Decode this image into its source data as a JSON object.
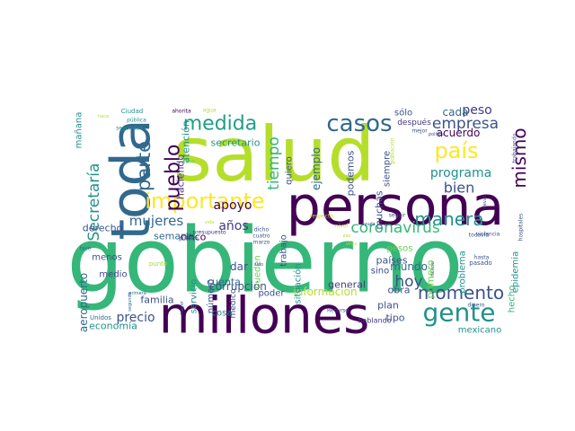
{
  "words": [
    {
      "text": "gobierno",
      "color": "#35b779"
    },
    {
      "text": "salud",
      "color": "#b5de2b"
    },
    {
      "text": "persona",
      "color": "#440154"
    },
    {
      "text": "millones",
      "color": "#440154"
    },
    {
      "text": "toda",
      "color": "#31688e"
    },
    {
      "text": "importante",
      "color": "#fde725"
    },
    {
      "text": "manera",
      "color": "#21918c"
    },
    {
      "text": "casos",
      "color": "#31688e"
    },
    {
      "text": "medida",
      "color": "#1f9e89"
    },
    {
      "text": "país",
      "color": "#fde725"
    },
    {
      "text": "gente",
      "color": "#21918c"
    },
    {
      "text": "coronavirus",
      "color": "#35b779"
    },
    {
      "text": "momento",
      "color": "#3b528b"
    },
    {
      "text": "pueblo",
      "color": "#440154"
    },
    {
      "text": "tiempo",
      "color": "#35b779"
    },
    {
      "text": "parte",
      "color": "#31688e"
    },
    {
      "text": "mismo",
      "color": "#440154"
    },
    {
      "text": "empresa",
      "color": "#3b528b"
    },
    {
      "text": "bien",
      "color": "#3b528b"
    },
    {
      "text": "mujeres",
      "color": "#31688e"
    },
    {
      "text": "Secretaría",
      "color": "#21918c"
    },
    {
      "text": "hoy",
      "color": "#3b528b"
    },
    {
      "text": "programa",
      "color": "#21918c"
    },
    {
      "text": "apoyo",
      "color": "#440154"
    },
    {
      "text": "años",
      "color": "#443983"
    },
    {
      "text": "precio",
      "color": "#3b528b"
    },
    {
      "text": "información",
      "color": "#b5de2b"
    },
    {
      "text": "corrupción",
      "color": "#3b528b"
    },
    {
      "text": "peso",
      "color": "#443983"
    },
    {
      "text": "cada",
      "color": "#31688e"
    },
    {
      "text": "ejemplo",
      "color": "#31688e"
    },
    {
      "text": "secretario",
      "color": "#21918c"
    },
    {
      "text": "acuerdo",
      "color": "#440154"
    },
    {
      "text": "podemos",
      "color": "#3b528b"
    },
    {
      "text": "muchas",
      "color": "#3b528b"
    },
    {
      "text": "mundo",
      "color": "#31688e"
    },
    {
      "text": "atención",
      "color": "#21918c"
    },
    {
      "text": "haciendo",
      "color": "#443983"
    },
    {
      "text": "semana",
      "color": "#31688e"
    },
    {
      "text": "derecho",
      "color": "#3b528b"
    },
    {
      "text": "menos",
      "color": "#3b528b"
    },
    {
      "text": "medio",
      "color": "#3e4a89"
    },
    {
      "text": "cinco",
      "color": "#440154"
    },
    {
      "text": "cuenta",
      "color": "#31688e"
    },
    {
      "text": "general",
      "color": "#443983"
    },
    {
      "text": "países",
      "color": "#3b528b"
    },
    {
      "text": "sino",
      "color": "#3e4a89"
    },
    {
      "text": "plan",
      "color": "#3b528b"
    },
    {
      "text": "tipo",
      "color": "#3b528b"
    },
    {
      "text": "obra",
      "color": "#3b528b"
    },
    {
      "text": "familia",
      "color": "#3b528b"
    },
    {
      "text": "economía",
      "color": "#21918c"
    },
    {
      "text": "cosa",
      "color": "#21918c"
    },
    {
      "text": "número",
      "color": "#3b528b"
    },
    {
      "text": "médico",
      "color": "#3b528b"
    },
    {
      "text": "servicio",
      "color": "#21918c"
    },
    {
      "text": "poder",
      "color": "#3e4a89"
    },
    {
      "text": "situación",
      "color": "#21918c"
    },
    {
      "text": "trabajo",
      "color": "#3b528b"
    },
    {
      "text": "pueden",
      "color": "#6ece58"
    },
    {
      "text": "dar",
      "color": "#3b528b"
    },
    {
      "text": "quiero",
      "color": "#3b528b"
    },
    {
      "text": "sólo",
      "color": "#3b528b"
    },
    {
      "text": "siempre",
      "color": "#3b528b"
    },
    {
      "text": "después",
      "color": "#443983"
    },
    {
      "text": "mañana",
      "color": "#21918c"
    },
    {
      "text": "aeropuerto",
      "color": "#31688e"
    },
    {
      "text": "hecho",
      "color": "#35b779"
    },
    {
      "text": "mexicano",
      "color": "#21918c"
    },
    {
      "text": "problema",
      "color": "#21918c"
    },
    {
      "text": "epidemia",
      "color": "#21918c"
    },
    {
      "text": "primero",
      "color": "#6ece58"
    },
    {
      "text": "pesos",
      "color": "#6ece58"
    },
    {
      "text": "hablando",
      "color": "#443983"
    },
    {
      "text": "Unidos",
      "color": "#31688e"
    },
    {
      "text": "punto",
      "color": "#a0da39"
    },
    {
      "text": "Ciudad",
      "color": "#21918c"
    },
    {
      "text": "seguridad",
      "color": "#21918c"
    },
    {
      "text": "pública",
      "color": "#21918c"
    },
    {
      "text": "público",
      "color": "#3b528b"
    },
    {
      "text": "presupuesto",
      "color": "#443983"
    },
    {
      "text": "incluso",
      "color": "#3b528b"
    },
    {
      "text": "pasado",
      "color": "#3b528b"
    },
    {
      "text": "todavía",
      "color": "#3b528b"
    },
    {
      "text": "violencia",
      "color": "#3b528b"
    },
    {
      "text": "hospitales",
      "color": "#3b528b"
    },
    {
      "text": "dinero",
      "color": "#3b528b"
    },
    {
      "text": "ayuda",
      "color": "#3b528b"
    },
    {
      "text": "seguir",
      "color": "#3b528b"
    },
    {
      "text": "trabajando",
      "color": "#3b528b"
    },
    {
      "text": "llevar",
      "color": "#3b528b"
    },
    {
      "text": "mejor",
      "color": "#3b528b"
    },
    {
      "text": "política",
      "color": "#3b528b"
    },
    {
      "text": "hasta",
      "color": "#3b528b"
    },
    {
      "text": "dicho",
      "color": "#3b528b"
    },
    {
      "text": "cuatro",
      "color": "#3b528b"
    },
    {
      "text": "marzo",
      "color": "#3b528b"
    },
    {
      "text": "ahorita",
      "color": "#440154"
    },
    {
      "text": "agua",
      "color": "#b5de2b"
    },
    {
      "text": "nivel",
      "color": "#b5de2b"
    },
    {
      "text": "respecto",
      "color": "#b5de2b"
    },
    {
      "text": "Recurso",
      "color": "#3b528b"
    },
    {
      "text": "fase",
      "color": "#31688e"
    },
    {
      "text": "sido",
      "color": "#3b528b"
    },
    {
      "text": "hace",
      "color": "#b5de2b"
    },
    {
      "text": "vida",
      "color": "#b5de2b"
    },
    {
      "text": "casa",
      "color": "#6ece58"
    },
    {
      "text": "primera",
      "color": "#31688e"
    },
    {
      "text": "segunda",
      "color": "#31688e"
    },
    {
      "text": "mayor",
      "color": "#3b528b"
    },
    {
      "text": "virus",
      "color": "#b5de2b"
    },
    {
      "text": "eso",
      "color": "#b5de2b"
    },
    {
      "text": "población",
      "color": "#b5de2b"
    }
  ]
}
